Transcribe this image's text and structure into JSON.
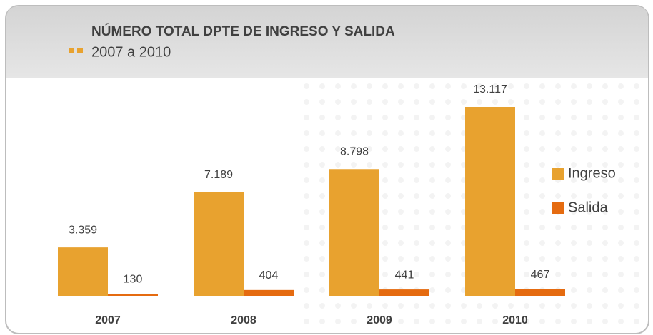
{
  "chart_data": {
    "type": "bar",
    "title": "NÚMERO TOTAL DPTE DE INGRESO Y SALIDA",
    "subtitle": "2007 a 2010",
    "categories": [
      "2007",
      "2008",
      "2009",
      "2010"
    ],
    "series": [
      {
        "name": "Ingreso",
        "color": "#e8a22f",
        "values": [
          3359,
          7189,
          8798,
          13117
        ],
        "value_labels": [
          "3.359",
          "7.189",
          "8.798",
          "13.117"
        ]
      },
      {
        "name": "Salida",
        "color": "#e56b10",
        "values": [
          130,
          404,
          441,
          467
        ],
        "value_labels": [
          "130",
          "404",
          "441",
          "467"
        ]
      }
    ],
    "legend": "right"
  }
}
